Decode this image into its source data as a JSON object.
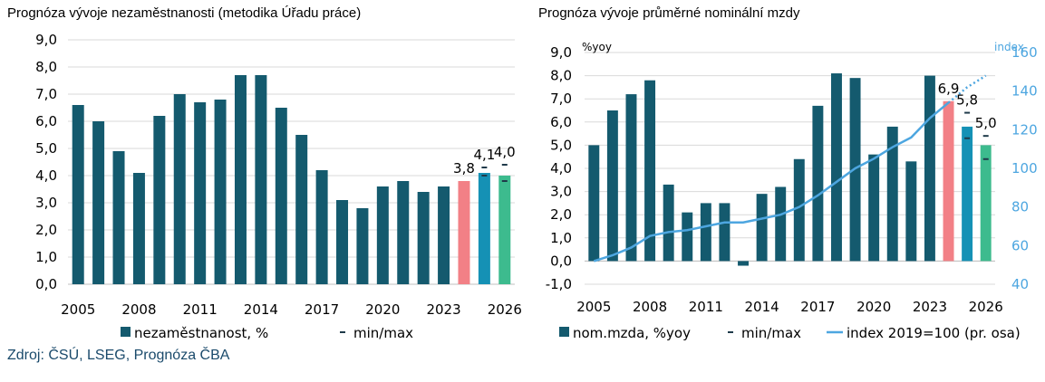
{
  "colors": {
    "bar": "#145a6e",
    "bar_2024": "#f28086",
    "bar_2025": "#1591b5",
    "bar_2026": "#3dbb8e",
    "index_line": "#4da6e0",
    "grid": "#d9d9d9",
    "source": "#1a4a6b"
  },
  "source_note": "Zdroj: ČSÚ, LSEG, Prognóza ČBA",
  "chart_data": [
    {
      "type": "bar",
      "title": "Prognóza vývoje nezaměstnanosti (metodika Úřadu práce)",
      "x_years": [
        2005,
        2006,
        2007,
        2008,
        2009,
        2010,
        2011,
        2012,
        2013,
        2014,
        2015,
        2016,
        2017,
        2018,
        2019,
        2020,
        2021,
        2022,
        2023,
        2024,
        2025,
        2026
      ],
      "x_tick_labels": [
        "2005",
        "2008",
        "2011",
        "2014",
        "2017",
        "2020",
        "2023",
        "2026"
      ],
      "y_tick_labels": [
        "0,0",
        "1,0",
        "2,0",
        "3,0",
        "4,0",
        "5,0",
        "6,0",
        "7,0",
        "8,0",
        "9,0"
      ],
      "ylim": [
        0,
        9
      ],
      "grid": true,
      "legend_position": "bottom",
      "series": [
        {
          "name": "nezaměstnanost, %",
          "values": [
            6.6,
            6.0,
            4.9,
            4.1,
            6.2,
            7.0,
            6.7,
            6.8,
            7.7,
            7.7,
            6.5,
            5.5,
            4.2,
            3.1,
            2.8,
            3.6,
            3.8,
            3.4,
            3.6,
            3.8,
            4.1,
            4.0
          ]
        },
        {
          "name": "min/max",
          "points": [
            {
              "x": 2025,
              "min": 4.0,
              "max": 4.3
            },
            {
              "x": 2026,
              "min": 3.8,
              "max": 4.4
            }
          ]
        }
      ],
      "data_labels": [
        {
          "x": 2024,
          "text": "3,8"
        },
        {
          "x": 2025,
          "text": "4,1"
        },
        {
          "x": 2026,
          "text": "4,0"
        }
      ]
    },
    {
      "type": "bar",
      "title": "Prognóza vývoje průměrné nominální mzdy",
      "left_axis_unit": "%yoy",
      "right_axis_unit": "index",
      "x_years": [
        2005,
        2006,
        2007,
        2008,
        2009,
        2010,
        2011,
        2012,
        2013,
        2014,
        2015,
        2016,
        2017,
        2018,
        2019,
        2020,
        2021,
        2022,
        2023,
        2024,
        2025,
        2026
      ],
      "x_tick_labels": [
        "2005",
        "2008",
        "2011",
        "2014",
        "2017",
        "2020",
        "2023",
        "2026"
      ],
      "y_tick_labels": [
        "-1,0",
        "0,0",
        "1,0",
        "2,0",
        "3,0",
        "4,0",
        "5,0",
        "6,0",
        "7,0",
        "8,0",
        "9,0"
      ],
      "y2_tick_labels": [
        "40",
        "60",
        "80",
        "100",
        "120",
        "140",
        "160"
      ],
      "ylim": [
        -1,
        9
      ],
      "y2lim": [
        40,
        160
      ],
      "grid": true,
      "legend_position": "bottom",
      "series": [
        {
          "name": "nom.mzda, %yoy",
          "values": [
            5.0,
            6.5,
            7.2,
            7.8,
            3.3,
            2.1,
            2.5,
            2.5,
            -0.2,
            2.9,
            3.2,
            4.4,
            6.7,
            8.1,
            7.9,
            4.6,
            5.8,
            4.3,
            8.0,
            6.9,
            5.8,
            5.0
          ]
        },
        {
          "name": "min/max",
          "points": [
            {
              "x": 2025,
              "min": 5.3,
              "max": 6.4
            },
            {
              "x": 2026,
              "min": 4.4,
              "max": 5.4
            }
          ]
        },
        {
          "name": "index 2019=100 (pr. osa)",
          "axis": "right",
          "values": [
            52,
            55,
            59,
            65,
            67,
            68,
            70,
            72,
            72,
            74,
            76,
            80,
            86,
            93,
            100,
            105,
            111,
            116,
            126,
            134,
            142,
            148
          ]
        }
      ],
      "data_labels": [
        {
          "x": 2024,
          "text": "6,9"
        },
        {
          "x": 2025,
          "text": "5,8"
        },
        {
          "x": 2026,
          "text": "5,0"
        }
      ]
    }
  ]
}
